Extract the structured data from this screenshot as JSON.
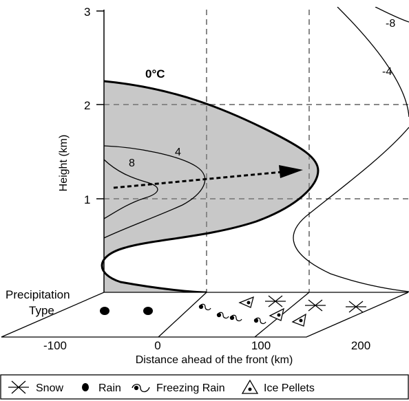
{
  "diagram": {
    "y_axis": {
      "title": "Height (km)",
      "ticks": [
        "1",
        "2",
        "3"
      ]
    },
    "x_axis": {
      "title": "Distance ahead of the front (km)",
      "ticks": [
        "-100",
        "0",
        "100",
        "200"
      ]
    },
    "isotherms": {
      "freezing": "0°C",
      "warm": [
        "4",
        "8"
      ],
      "cold": [
        "-4",
        "-8"
      ]
    },
    "precipitation": {
      "label_line1": "Precipitation",
      "label_line2": "Type"
    },
    "legend": {
      "snow": "Snow",
      "rain": "Rain",
      "freezing_rain": "Freezing Rain",
      "ice_pellets": "Ice Pellets"
    }
  }
}
